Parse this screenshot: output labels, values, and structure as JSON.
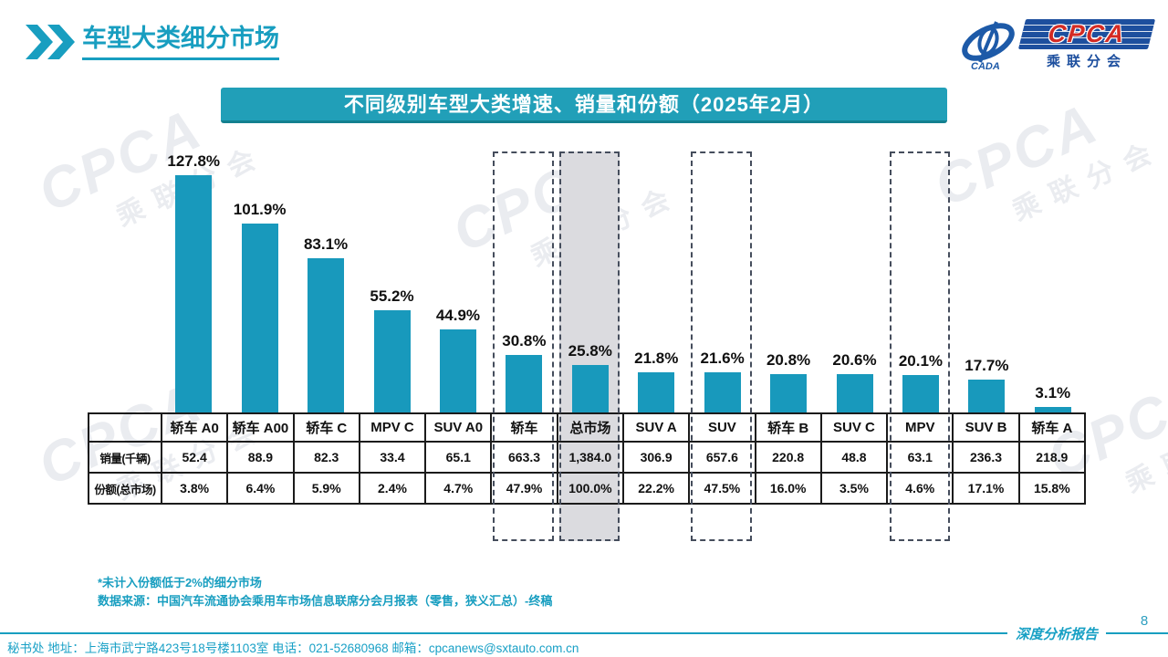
{
  "header": {
    "title": "车型大类细分市场"
  },
  "logo": {
    "cpca": "CPCA",
    "cada": "CADA",
    "subtitle": "乘联分会"
  },
  "watermark": {
    "big": "CPCA",
    "sub": "乘联分会"
  },
  "chart_data": {
    "type": "bar",
    "title": "不同级别车型大类增速、销量和份额（2025年2月）",
    "categories": [
      "轿车 A0",
      "轿车 A00",
      "轿车 C",
      "MPV C",
      "SUV A0",
      "轿车",
      "总市场",
      "SUV A",
      "SUV",
      "轿车 B",
      "SUV C",
      "MPV",
      "SUV B",
      "轿车 A"
    ],
    "series": [
      {
        "name": "增速",
        "format": "percent",
        "values": [
          127.8,
          101.9,
          83.1,
          55.2,
          44.9,
          30.8,
          25.8,
          21.8,
          21.6,
          20.8,
          20.6,
          20.1,
          17.7,
          3.1
        ]
      },
      {
        "name": "销量(千辆)",
        "format": "number",
        "values": [
          52.4,
          88.9,
          82.3,
          33.4,
          65.1,
          663.3,
          1384.0,
          306.9,
          657.6,
          220.8,
          48.8,
          63.1,
          236.3,
          218.9
        ]
      },
      {
        "name": "份额(总市场)",
        "format": "percent",
        "values": [
          3.8,
          6.4,
          5.9,
          2.4,
          4.7,
          47.9,
          100.0,
          22.2,
          47.5,
          16.0,
          3.5,
          4.6,
          17.1,
          15.8
        ]
      }
    ],
    "data_labels": [
      "127.8%",
      "101.9%",
      "83.1%",
      "55.2%",
      "44.9%",
      "30.8%",
      "25.8%",
      "21.8%",
      "21.6%",
      "20.8%",
      "20.6%",
      "20.1%",
      "17.7%",
      "3.1%"
    ],
    "highlight_dashed_columns": [
      5,
      6,
      8,
      11
    ],
    "highlight_filled_column": 6,
    "ylim": [
      0,
      135
    ],
    "axes_visible": false,
    "grid": false,
    "legend": "none",
    "bar_color": "#1899BC",
    "highlight_fill_color": "#DBDBDF",
    "dash_border_color": "#454D5C"
  },
  "notes": {
    "line1": "*未计入份额低于2%的细分市场",
    "line2": "数据来源：中国汽车流通协会乘用车市场信息联席分会月报表（零售，狭义汇总）-终稿"
  },
  "footer": {
    "secretariat": "秘书处  地址：上海市武宁路423号18号楼1103室 电话：021-52680968  邮箱：cpcanews@sxtauto.com.cn",
    "report_label": "深度分析报告",
    "page_number": "8"
  },
  "colors": {
    "teal_primary": "#189EC0",
    "banner_bg": "#219FB8",
    "bar": "#1899BC",
    "logo_blue": "#1D4F9E",
    "logo_red": "#D42B24"
  }
}
